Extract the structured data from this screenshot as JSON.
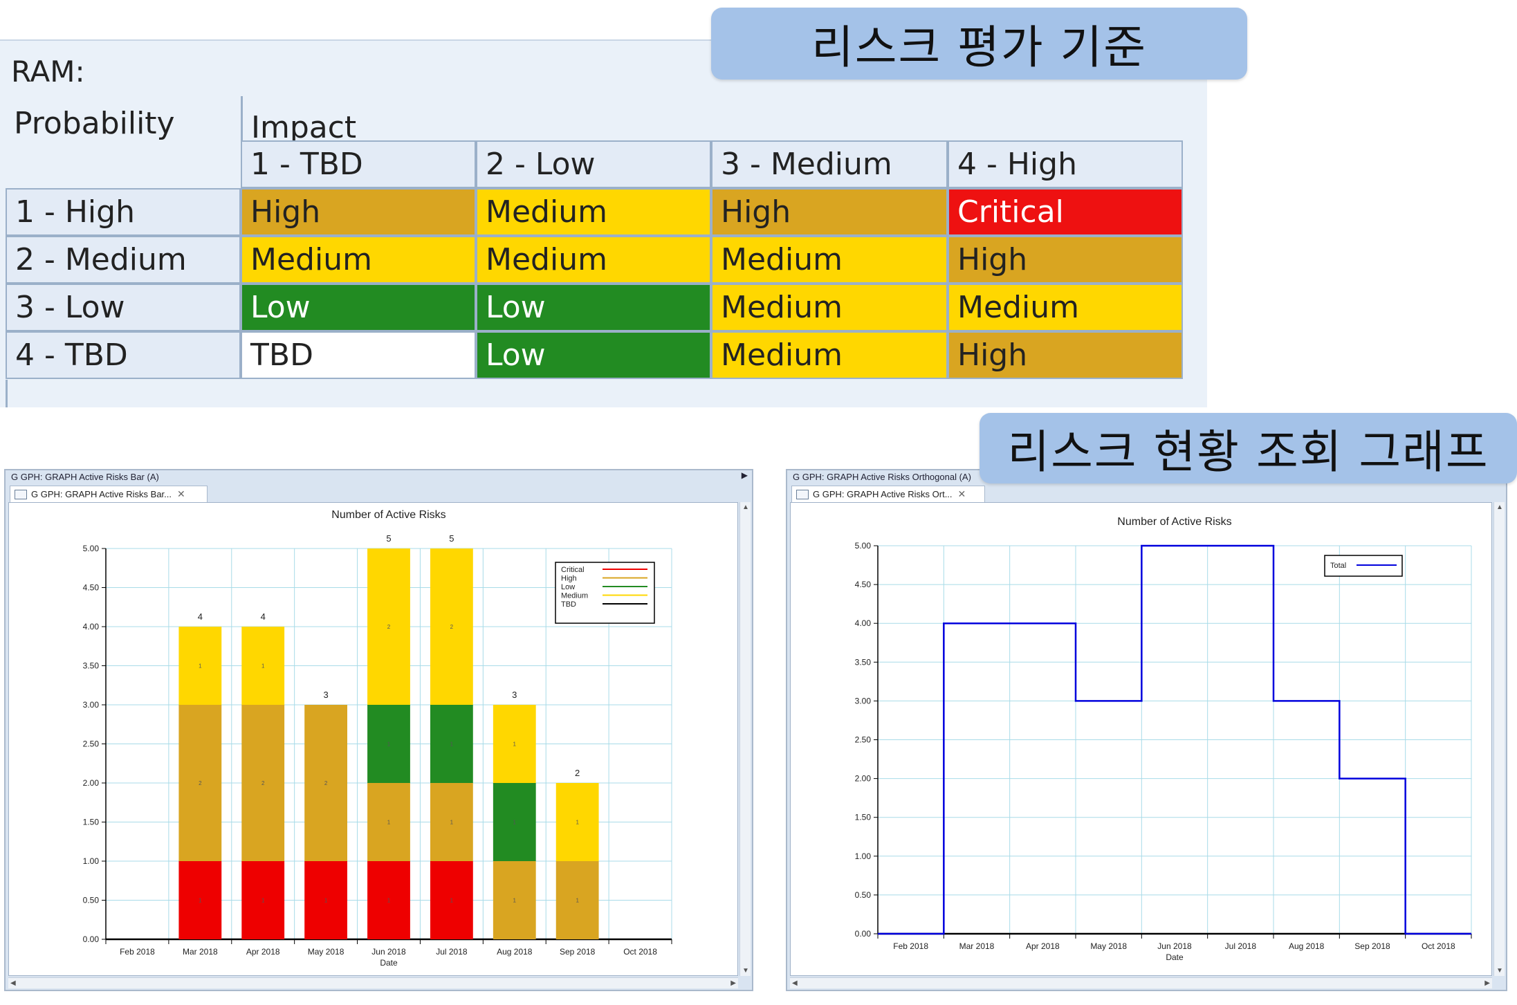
{
  "banners": {
    "risk_criteria": "리스크 평가 기준",
    "risk_status_graph": "리스크 현황 조회 그래프"
  },
  "ram": {
    "label": "RAM:",
    "probability_header": "Probability",
    "impact_header": "Impact",
    "impact_levels": [
      "1 - TBD",
      "2 - Low",
      "3 - Medium",
      "4 - High"
    ],
    "probability_levels": [
      "1 - High",
      "2 - Medium",
      "3 - Low",
      "4 - TBD"
    ],
    "matrix": [
      [
        "High",
        "Medium",
        "High",
        "Critical"
      ],
      [
        "Medium",
        "Medium",
        "Medium",
        "High"
      ],
      [
        "Low",
        "Low",
        "Medium",
        "Medium"
      ],
      [
        "TBD",
        "Low",
        "Medium",
        "High"
      ]
    ],
    "colors": {
      "Critical": "#ee1111",
      "High": "#d9a521",
      "Medium": "#ffd700",
      "Low": "#228b22",
      "TBD": "#ffffff"
    }
  },
  "bar_window": {
    "title": "G GPH: GRAPH Active Risks Bar (A)",
    "tab_label": "G GPH: GRAPH Active Risks Bar..."
  },
  "line_window": {
    "title": "G GPH: GRAPH Active Risks Orthogonal (A)",
    "tab_label": "G GPH: GRAPH Active Risks Ort..."
  },
  "chart_data": [
    {
      "type": "bar",
      "stacked": true,
      "title": "Number of Active Risks",
      "xlabel": "Date",
      "ylabel": "",
      "ylim": [
        0,
        5
      ],
      "yticks": [
        "0.00",
        "0.50",
        "1.00",
        "1.50",
        "2.00",
        "2.50",
        "3.00",
        "3.50",
        "4.00",
        "4.50",
        "5.00"
      ],
      "categories": [
        "Feb 2018",
        "Mar 2018",
        "Apr 2018",
        "May 2018",
        "Jun 2018",
        "Jul 2018",
        "Aug 2018",
        "Sep 2018",
        "Oct 2018"
      ],
      "series": [
        {
          "name": "Critical",
          "color": "#ee0000",
          "values": [
            0,
            1,
            1,
            1,
            1,
            1,
            0,
            0,
            0
          ]
        },
        {
          "name": "High",
          "color": "#d9a521",
          "values": [
            0,
            2,
            2,
            2,
            1,
            1,
            1,
            1,
            0
          ]
        },
        {
          "name": "Low",
          "color": "#228b22",
          "values": [
            0,
            0,
            0,
            0,
            1,
            1,
            1,
            0,
            0
          ]
        },
        {
          "name": "Medium",
          "color": "#ffd700",
          "values": [
            0,
            1,
            1,
            0,
            2,
            2,
            1,
            1,
            0
          ]
        },
        {
          "name": "TBD",
          "color": "#000000",
          "values": [
            0,
            0,
            0,
            0,
            0,
            0,
            0,
            0,
            0
          ]
        }
      ],
      "totals": [
        0,
        4,
        4,
        3,
        5,
        5,
        3,
        2,
        0
      ],
      "grid": true,
      "legend": "top-right"
    },
    {
      "type": "line",
      "step": true,
      "title": "Number of Active Risks",
      "xlabel": "Date",
      "ylabel": "",
      "ylim": [
        0,
        5
      ],
      "yticks": [
        "0.00",
        "0.50",
        "1.00",
        "1.50",
        "2.00",
        "2.50",
        "3.00",
        "3.50",
        "4.00",
        "4.50",
        "5.00"
      ],
      "categories": [
        "Feb 2018",
        "Mar 2018",
        "Apr 2018",
        "May 2018",
        "Jun 2018",
        "Jul 2018",
        "Aug 2018",
        "Sep 2018",
        "Oct 2018"
      ],
      "series": [
        {
          "name": "Total",
          "color": "#0000dd",
          "values": [
            0,
            4,
            4,
            3,
            5,
            5,
            3,
            2,
            0
          ]
        }
      ],
      "grid": true,
      "legend": "top-right"
    }
  ]
}
